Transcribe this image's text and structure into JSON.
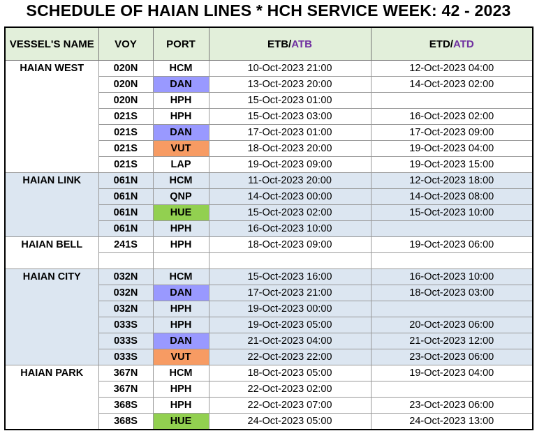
{
  "header": {
    "title": "SCHEDULE OF HAIAN LINES * HCH SERVICE WEEK: 42 - 2023"
  },
  "table": {
    "columns": [
      {
        "parts": [
          "VESSEL'S NAME"
        ]
      },
      {
        "parts": [
          "VOY"
        ]
      },
      {
        "parts": [
          "PORT"
        ]
      },
      {
        "parts": [
          "ETB/",
          "ATB"
        ]
      },
      {
        "parts": [
          "ETD/",
          "ATD"
        ]
      }
    ],
    "accent_color": "#7030a0",
    "header_color": "#e2efda",
    "shade_color": "#dce6f1",
    "port_colors": {
      "DAN": "#9999ff",
      "VUT": "#f79b63",
      "HUE": "#92d050"
    },
    "groups": [
      {
        "vessel": "HAIAN WEST",
        "shaded": false,
        "rows": [
          [
            "020N",
            "HCM",
            "10-Oct-2023 21:00",
            "12-Oct-2023 04:00"
          ],
          [
            "020N",
            "DAN",
            "13-Oct-2023 20:00",
            "14-Oct-2023 02:00"
          ],
          [
            "020N",
            "HPH",
            "15-Oct-2023 01:00",
            null
          ],
          [
            "021S",
            "HPH",
            "15-Oct-2023 03:00",
            "16-Oct-2023 02:00"
          ],
          [
            "021S",
            "DAN",
            "17-Oct-2023 01:00",
            "17-Oct-2023 09:00"
          ],
          [
            "021S",
            "VUT",
            "18-Oct-2023 20:00",
            "19-Oct-2023 04:00"
          ],
          [
            "021S",
            "LAP",
            "19-Oct-2023 09:00",
            "19-Oct-2023 15:00"
          ]
        ]
      },
      {
        "vessel": "HAIAN LINK",
        "shaded": true,
        "rows": [
          [
            "061N",
            "HCM",
            "11-Oct-2023 20:00",
            "12-Oct-2023 18:00"
          ],
          [
            "061N",
            "QNP",
            "14-Oct-2023 00:00",
            "14-Oct-2023 08:00"
          ],
          [
            "061N",
            "HUE",
            "15-Oct-2023 02:00",
            "15-Oct-2023 10:00"
          ],
          [
            "061N",
            "HPH",
            "16-Oct-2023 10:00",
            null
          ]
        ]
      },
      {
        "vessel": "HAIAN BELL",
        "shaded": false,
        "rows": [
          [
            "241S",
            "HPH",
            "18-Oct-2023 09:00",
            "19-Oct-2023 06:00"
          ],
          [
            null,
            null,
            null,
            null
          ]
        ]
      },
      {
        "vessel": "HAIAN CITY",
        "shaded": true,
        "rows": [
          [
            "032N",
            "HCM",
            "15-Oct-2023 16:00",
            "16-Oct-2023 10:00"
          ],
          [
            "032N",
            "DAN",
            "17-Oct-2023 21:00",
            "18-Oct-2023 03:00"
          ],
          [
            "032N",
            "HPH",
            "19-Oct-2023 00:00",
            null
          ],
          [
            "033S",
            "HPH",
            "19-Oct-2023 05:00",
            "20-Oct-2023 06:00"
          ],
          [
            "033S",
            "DAN",
            "21-Oct-2023 04:00",
            "21-Oct-2023 12:00"
          ],
          [
            "033S",
            "VUT",
            "22-Oct-2023 22:00",
            "23-Oct-2023 06:00"
          ]
        ]
      },
      {
        "vessel": "HAIAN PARK",
        "shaded": false,
        "rows": [
          [
            "367N",
            "HCM",
            "18-Oct-2023 05:00",
            "19-Oct-2023 04:00"
          ],
          [
            "367N",
            "HPH",
            "22-Oct-2023 02:00",
            null
          ],
          [
            "368S",
            "HPH",
            "22-Oct-2023 07:00",
            "23-Oct-2023 06:00"
          ],
          [
            "368S",
            "HUE",
            "24-Oct-2023 05:00",
            "24-Oct-2023 13:00"
          ]
        ]
      }
    ]
  }
}
